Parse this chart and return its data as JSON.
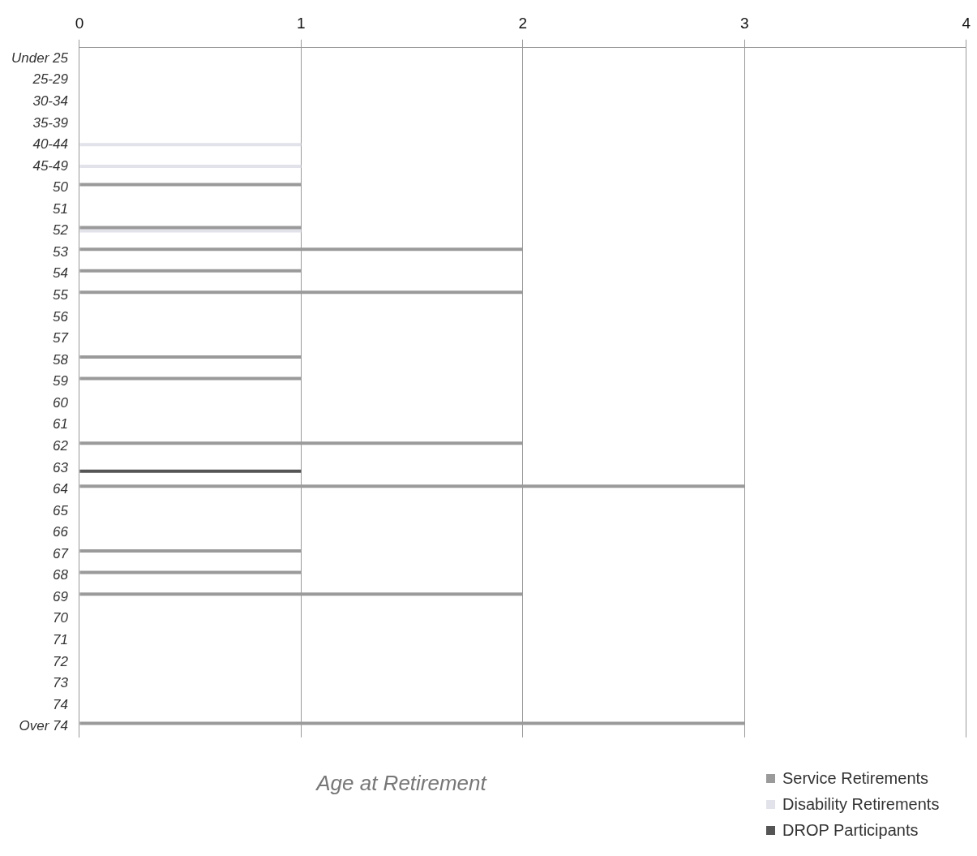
{
  "chart_data": {
    "type": "bar",
    "orientation": "horizontal",
    "xlabel": "Age at Retirement",
    "categories": [
      "Under 25",
      "25-29",
      "30-34",
      "35-39",
      "40-44",
      "45-49",
      "50",
      "51",
      "52",
      "53",
      "54",
      "55",
      "56",
      "57",
      "58",
      "59",
      "60",
      "61",
      "62",
      "63",
      "64",
      "65",
      "66",
      "67",
      "68",
      "69",
      "70",
      "71",
      "72",
      "73",
      "74",
      "Over 74"
    ],
    "series": [
      {
        "name": "Service Retirements",
        "color": "#9a9a9a",
        "values": [
          0,
          0,
          0,
          0,
          0,
          0,
          1,
          0,
          1,
          2,
          1,
          2,
          0,
          0,
          1,
          1,
          0,
          0,
          2,
          0,
          3,
          0,
          0,
          1,
          1,
          2,
          0,
          0,
          0,
          0,
          0,
          3
        ]
      },
      {
        "name": "Disability Retirements",
        "color": "#e2e2ea",
        "values": [
          0,
          0,
          0,
          0,
          1,
          1,
          0,
          0,
          1,
          0,
          0,
          0,
          0,
          0,
          0,
          0,
          0,
          0,
          0,
          0,
          0,
          0,
          0,
          0,
          0,
          0,
          0,
          0,
          0,
          0,
          0,
          0
        ]
      },
      {
        "name": "DROP Participants",
        "color": "#555555",
        "values": [
          0,
          0,
          0,
          0,
          0,
          0,
          0,
          0,
          0,
          0,
          0,
          0,
          0,
          0,
          0,
          0,
          0,
          0,
          0,
          1,
          0,
          0,
          0,
          0,
          0,
          0,
          0,
          0,
          0,
          0,
          0,
          0
        ]
      }
    ],
    "xlim": [
      0,
      4
    ],
    "xticks": [
      0,
      1,
      2,
      3,
      4
    ],
    "grid": "x",
    "legend": "bottom right"
  }
}
